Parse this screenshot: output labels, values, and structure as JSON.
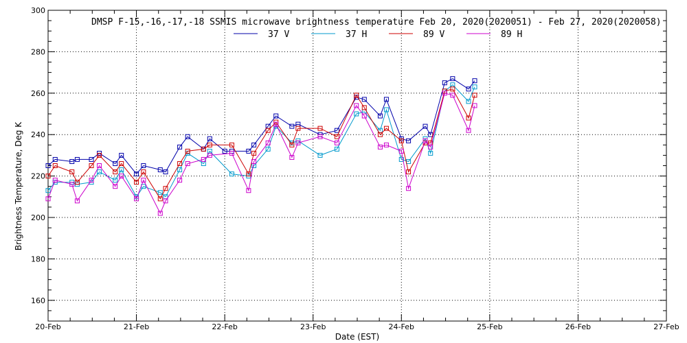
{
  "chart_data": {
    "type": "line",
    "title": "DMSP F-15,-16,-17,-18 SSMIS microwave brightness temperature Feb 20, 2020(2020051) - Feb 27, 2020(2020058)",
    "xlabel": "Date (EST)",
    "ylabel": "Brightness Temperature, Deg K",
    "xlim": [
      0,
      7
    ],
    "ylim": [
      150,
      300
    ],
    "x_tick_labels": [
      "20-Feb",
      "21-Feb",
      "22-Feb",
      "23-Feb",
      "24-Feb",
      "25-Feb",
      "26-Feb",
      "27-Feb"
    ],
    "y_ticks": [
      160,
      180,
      200,
      220,
      240,
      260,
      280,
      300
    ],
    "grid": true,
    "legend_position": "top",
    "series": [
      {
        "name": "37 V",
        "color": "#0000aa",
        "points": [
          [
            0.0,
            225
          ],
          [
            0.08,
            228
          ],
          [
            0.27,
            227
          ],
          [
            0.33,
            228
          ],
          [
            0.49,
            228
          ],
          [
            0.58,
            231
          ],
          [
            0.76,
            226
          ],
          [
            0.83,
            230
          ],
          [
            1.0,
            221
          ],
          [
            1.08,
            225
          ],
          [
            1.27,
            223
          ],
          [
            1.33,
            222
          ],
          [
            1.49,
            234
          ],
          [
            1.58,
            239
          ],
          [
            1.76,
            233
          ],
          [
            1.83,
            238
          ],
          [
            2.0,
            232
          ],
          [
            2.08,
            232
          ],
          [
            2.27,
            232
          ],
          [
            2.33,
            235
          ],
          [
            2.49,
            244
          ],
          [
            2.58,
            249
          ],
          [
            2.76,
            244
          ],
          [
            2.83,
            245
          ],
          [
            3.08,
            240
          ],
          [
            3.27,
            242
          ],
          [
            3.49,
            258
          ],
          [
            3.58,
            257
          ],
          [
            3.76,
            249
          ],
          [
            3.83,
            257
          ],
          [
            4.0,
            238
          ],
          [
            4.08,
            237
          ],
          [
            4.27,
            244
          ],
          [
            4.33,
            240
          ],
          [
            4.49,
            265
          ],
          [
            4.58,
            267
          ],
          [
            4.76,
            262
          ],
          [
            4.83,
            266
          ]
        ]
      },
      {
        "name": "37 H",
        "color": "#0099cc",
        "points": [
          [
            0.0,
            213
          ],
          [
            0.08,
            217
          ],
          [
            0.27,
            217
          ],
          [
            0.33,
            216
          ],
          [
            0.49,
            217
          ],
          [
            0.58,
            222
          ],
          [
            0.76,
            218
          ],
          [
            0.83,
            223
          ],
          [
            1.0,
            210
          ],
          [
            1.08,
            215
          ],
          [
            1.27,
            212
          ],
          [
            1.33,
            210
          ],
          [
            1.49,
            223
          ],
          [
            1.58,
            231
          ],
          [
            1.76,
            226
          ],
          [
            1.83,
            232
          ],
          [
            2.08,
            221
          ],
          [
            2.27,
            220
          ],
          [
            2.33,
            225
          ],
          [
            2.49,
            233
          ],
          [
            2.58,
            244
          ],
          [
            2.76,
            236
          ],
          [
            2.83,
            237
          ],
          [
            3.08,
            230
          ],
          [
            3.27,
            233
          ],
          [
            3.49,
            250
          ],
          [
            3.58,
            251
          ],
          [
            3.76,
            242
          ],
          [
            3.83,
            252
          ],
          [
            4.0,
            228
          ],
          [
            4.08,
            227
          ],
          [
            4.27,
            238
          ],
          [
            4.33,
            231
          ],
          [
            4.49,
            261
          ],
          [
            4.58,
            264
          ],
          [
            4.76,
            256
          ],
          [
            4.83,
            263
          ]
        ]
      },
      {
        "name": "89 V",
        "color": "#cc0000",
        "points": [
          [
            0.0,
            220
          ],
          [
            0.08,
            225
          ],
          [
            0.27,
            222
          ],
          [
            0.33,
            217
          ],
          [
            0.49,
            225
          ],
          [
            0.58,
            230
          ],
          [
            0.76,
            222
          ],
          [
            0.83,
            226
          ],
          [
            1.0,
            217
          ],
          [
            1.08,
            222
          ],
          [
            1.27,
            209
          ],
          [
            1.33,
            214
          ],
          [
            1.49,
            226
          ],
          [
            1.58,
            232
          ],
          [
            1.76,
            233
          ],
          [
            1.83,
            235
          ],
          [
            2.08,
            235
          ],
          [
            2.27,
            221
          ],
          [
            2.33,
            231
          ],
          [
            2.49,
            242
          ],
          [
            2.58,
            246
          ],
          [
            2.76,
            235
          ],
          [
            2.83,
            243
          ],
          [
            3.08,
            243
          ],
          [
            3.27,
            239
          ],
          [
            3.49,
            259
          ],
          [
            3.58,
            253
          ],
          [
            3.76,
            240
          ],
          [
            3.83,
            243
          ],
          [
            4.0,
            237
          ],
          [
            4.08,
            222
          ],
          [
            4.27,
            236
          ],
          [
            4.33,
            236
          ],
          [
            4.49,
            261
          ],
          [
            4.58,
            262
          ],
          [
            4.76,
            248
          ],
          [
            4.83,
            259
          ]
        ]
      },
      {
        "name": "89 H",
        "color": "#cc00cc",
        "points": [
          [
            0.0,
            209
          ],
          [
            0.08,
            218
          ],
          [
            0.27,
            216
          ],
          [
            0.33,
            208
          ],
          [
            0.49,
            218
          ],
          [
            0.58,
            225
          ],
          [
            0.76,
            215
          ],
          [
            0.83,
            220
          ],
          [
            1.0,
            209
          ],
          [
            1.08,
            218
          ],
          [
            1.27,
            202
          ],
          [
            1.33,
            208
          ],
          [
            1.49,
            218
          ],
          [
            1.58,
            226
          ],
          [
            1.76,
            228
          ],
          [
            1.83,
            230
          ],
          [
            2.08,
            231
          ],
          [
            2.27,
            213
          ],
          [
            2.33,
            227
          ],
          [
            2.49,
            236
          ],
          [
            2.58,
            245
          ],
          [
            2.76,
            229
          ],
          [
            2.83,
            236
          ],
          [
            3.08,
            239
          ],
          [
            3.27,
            236
          ],
          [
            3.49,
            254
          ],
          [
            3.58,
            249
          ],
          [
            3.76,
            234
          ],
          [
            3.83,
            235
          ],
          [
            4.0,
            232
          ],
          [
            4.08,
            214
          ],
          [
            4.27,
            237
          ],
          [
            4.33,
            234
          ],
          [
            4.49,
            260
          ],
          [
            4.58,
            259
          ],
          [
            4.76,
            242
          ],
          [
            4.83,
            254
          ]
        ]
      }
    ]
  }
}
